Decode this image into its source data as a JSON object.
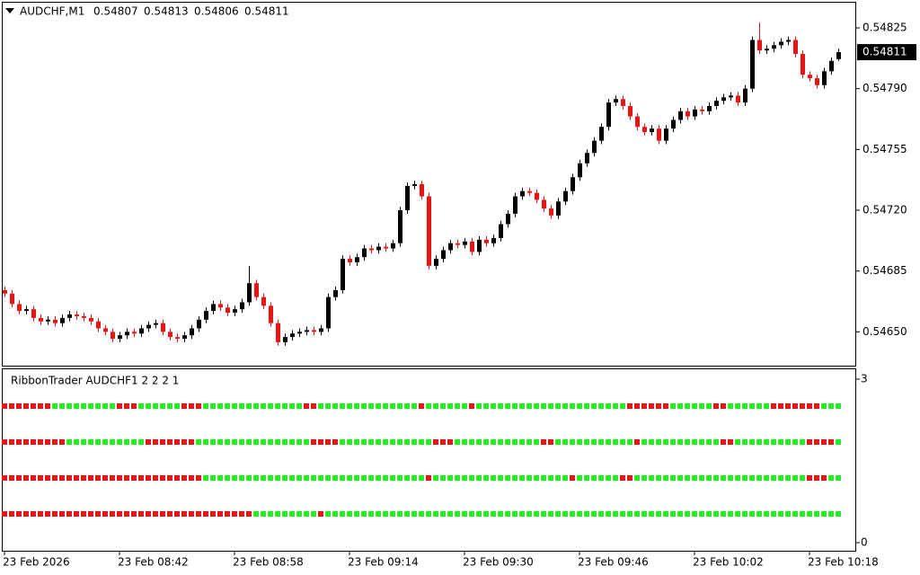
{
  "chart_data": {
    "type": "candlestick",
    "symbol": "AUDCHF,M1",
    "categories": [
      "23 Feb 2026",
      null,
      null,
      null,
      null,
      null,
      null,
      null,
      null,
      null,
      null,
      null,
      null,
      null,
      null,
      null,
      "23 Feb 08:42",
      null,
      null,
      null,
      null,
      null,
      null,
      null,
      null,
      null,
      null,
      null,
      null,
      null,
      null,
      null,
      "23 Feb 08:58",
      null,
      null,
      null,
      null,
      null,
      null,
      null,
      null,
      null,
      null,
      null,
      null,
      null,
      null,
      null,
      "23 Feb 09:14",
      null,
      null,
      null,
      null,
      null,
      null,
      null,
      null,
      null,
      null,
      null,
      null,
      null,
      null,
      null,
      "23 Feb 09:30",
      null,
      null,
      null,
      null,
      null,
      null,
      null,
      null,
      null,
      null,
      null,
      null,
      null,
      null,
      null,
      "23 Feb 09:46",
      null,
      null,
      null,
      null,
      null,
      null,
      null,
      null,
      null,
      null,
      null,
      null,
      null,
      null,
      null,
      "23 Feb 10:02",
      null,
      null,
      null,
      null,
      null,
      null,
      null,
      null,
      null,
      null,
      null,
      null,
      null,
      null,
      null,
      "23 Feb 10:18",
      null,
      null,
      null,
      null
    ],
    "open": [
      0.54674,
      0.54672,
      0.54666,
      0.54662,
      0.54663,
      0.54658,
      0.54656,
      0.54657,
      0.54655,
      0.54658,
      0.5466,
      0.54659,
      0.54658,
      0.54656,
      0.54652,
      0.5465,
      0.54646,
      0.54648,
      0.5465,
      0.54649,
      0.54652,
      0.54654,
      0.54655,
      0.5465,
      0.54647,
      0.54646,
      0.54648,
      0.54652,
      0.54657,
      0.54662,
      0.54666,
      0.54664,
      0.54661,
      0.54663,
      0.54667,
      0.54678,
      0.5467,
      0.54665,
      0.54655,
      0.54644,
      0.54647,
      0.54649,
      0.5465,
      0.54651,
      0.5465,
      0.54652,
      0.5467,
      0.54674,
      0.54692,
      0.5469,
      0.54693,
      0.54698,
      0.54697,
      0.54699,
      0.54698,
      0.54701,
      0.5472,
      0.54734,
      0.54735,
      0.54728,
      0.54688,
      0.54692,
      0.54697,
      0.54701,
      0.547,
      0.54702,
      0.54696,
      0.54703,
      0.54701,
      0.54704,
      0.54712,
      0.54718,
      0.54728,
      0.54731,
      0.5473,
      0.54726,
      0.54721,
      0.54717,
      0.54725,
      0.54731,
      0.54739,
      0.54747,
      0.54753,
      0.5476,
      0.54768,
      0.54782,
      0.54784,
      0.5478,
      0.54774,
      0.54768,
      0.54765,
      0.54767,
      0.5476,
      0.54767,
      0.54772,
      0.54777,
      0.54774,
      0.54778,
      0.54777,
      0.5478,
      0.54783,
      0.54785,
      0.54786,
      0.54782,
      0.5479,
      0.54818,
      0.54812,
      0.54813,
      0.54815,
      0.54817,
      0.54818,
      0.5481,
      0.54798,
      0.54796,
      0.54792,
      0.548,
      0.54807
    ],
    "high": [
      0.54676,
      0.54674,
      0.54668,
      0.54665,
      0.54665,
      0.5466,
      0.54659,
      0.54659,
      0.5466,
      0.54662,
      0.54662,
      0.54661,
      0.5466,
      0.54658,
      0.54654,
      0.54652,
      0.5465,
      0.54652,
      0.54652,
      0.54654,
      0.54656,
      0.54657,
      0.54657,
      0.54652,
      0.54649,
      0.5465,
      0.54654,
      0.54659,
      0.54664,
      0.54668,
      0.54668,
      0.54666,
      0.54665,
      0.54669,
      0.54688,
      0.5468,
      0.54672,
      0.54667,
      0.54657,
      0.54649,
      0.54651,
      0.54652,
      0.54653,
      0.54653,
      0.54654,
      0.54672,
      0.54676,
      0.54694,
      0.54694,
      0.54695,
      0.547,
      0.547,
      0.54701,
      0.54701,
      0.54703,
      0.54722,
      0.54736,
      0.54737,
      0.54737,
      0.5473,
      0.54694,
      0.54699,
      0.54703,
      0.54703,
      0.54704,
      0.54704,
      0.54705,
      0.54705,
      0.54706,
      0.54714,
      0.5472,
      0.5473,
      0.54733,
      0.54733,
      0.54732,
      0.54728,
      0.54723,
      0.54727,
      0.54733,
      0.54741,
      0.54749,
      0.54755,
      0.54762,
      0.5477,
      0.54784,
      0.54786,
      0.54786,
      0.54782,
      0.54776,
      0.5477,
      0.54769,
      0.54769,
      0.54769,
      0.54774,
      0.54779,
      0.54779,
      0.5478,
      0.5478,
      0.54782,
      0.54785,
      0.54787,
      0.54788,
      0.54788,
      0.54792,
      0.5482,
      0.54828,
      0.54815,
      0.54817,
      0.54819,
      0.5482,
      0.5482,
      0.54812,
      0.548,
      0.54798,
      0.54802,
      0.54808,
      0.54813
    ],
    "low": [
      0.5467,
      0.54664,
      0.5466,
      0.5466,
      0.54656,
      0.54654,
      0.54654,
      0.54653,
      0.54653,
      0.54656,
      0.54657,
      0.54656,
      0.54654,
      0.5465,
      0.54648,
      0.54644,
      0.54644,
      0.54646,
      0.54647,
      0.54647,
      0.5465,
      0.54652,
      0.54648,
      0.54645,
      0.54644,
      0.54644,
      0.54646,
      0.5465,
      0.54655,
      0.5466,
      0.54662,
      0.54659,
      0.54659,
      0.54661,
      0.54665,
      0.54668,
      0.54663,
      0.54653,
      0.54642,
      0.54642,
      0.54645,
      0.54647,
      0.54648,
      0.54648,
      0.54648,
      0.5465,
      0.54668,
      0.54672,
      0.54688,
      0.54688,
      0.54691,
      0.54695,
      0.54695,
      0.54696,
      0.54696,
      0.54699,
      0.54718,
      0.54732,
      0.54726,
      0.54686,
      0.54686,
      0.5469,
      0.54695,
      0.54698,
      0.54698,
      0.54694,
      0.54694,
      0.54699,
      0.54699,
      0.54702,
      0.5471,
      0.54716,
      0.54726,
      0.54728,
      0.54724,
      0.54719,
      0.54715,
      0.54715,
      0.54723,
      0.54729,
      0.54737,
      0.54745,
      0.54751,
      0.54758,
      0.54766,
      0.5478,
      0.54778,
      0.54772,
      0.54766,
      0.54763,
      0.54763,
      0.54758,
      0.54758,
      0.54765,
      0.5477,
      0.54772,
      0.54772,
      0.54775,
      0.54775,
      0.54778,
      0.54781,
      0.54783,
      0.5478,
      0.5478,
      0.54788,
      0.5481,
      0.5481,
      0.54811,
      0.54813,
      0.54815,
      0.54808,
      0.54796,
      0.54794,
      0.5479,
      0.5479,
      0.54798,
      0.54806
    ],
    "close": [
      0.54672,
      0.54666,
      0.54662,
      0.54663,
      0.54658,
      0.54656,
      0.54657,
      0.54655,
      0.54658,
      0.5466,
      0.54659,
      0.54658,
      0.54656,
      0.54652,
      0.5465,
      0.54646,
      0.54648,
      0.5465,
      0.54649,
      0.54652,
      0.54654,
      0.54655,
      0.5465,
      0.54647,
      0.54646,
      0.54648,
      0.54652,
      0.54657,
      0.54662,
      0.54666,
      0.54664,
      0.54661,
      0.54663,
      0.54667,
      0.54678,
      0.5467,
      0.54665,
      0.54655,
      0.54644,
      0.54647,
      0.54649,
      0.5465,
      0.54651,
      0.5465,
      0.54652,
      0.5467,
      0.54674,
      0.54692,
      0.5469,
      0.54693,
      0.54698,
      0.54697,
      0.54699,
      0.54698,
      0.54701,
      0.5472,
      0.54734,
      0.54735,
      0.54728,
      0.54688,
      0.54692,
      0.54697,
      0.54701,
      0.547,
      0.54702,
      0.54696,
      0.54703,
      0.54701,
      0.54704,
      0.54712,
      0.54718,
      0.54728,
      0.54731,
      0.5473,
      0.54726,
      0.54721,
      0.54717,
      0.54725,
      0.54731,
      0.54739,
      0.54747,
      0.54753,
      0.5476,
      0.54768,
      0.54782,
      0.54784,
      0.5478,
      0.54774,
      0.54768,
      0.54765,
      0.54767,
      0.5476,
      0.54767,
      0.54772,
      0.54777,
      0.54774,
      0.54778,
      0.54777,
      0.5478,
      0.54783,
      0.54785,
      0.54786,
      0.54782,
      0.5479,
      0.54818,
      0.54812,
      0.54813,
      0.54815,
      0.54817,
      0.54818,
      0.5481,
      0.54798,
      0.54796,
      0.54792,
      0.548,
      0.54806,
      0.54811
    ],
    "up_color": "#000000",
    "down_color": "#e81515",
    "flat_color": "#22bb22",
    "ylim": [
      0.5463,
      0.5484
    ],
    "yticks": [
      {
        "value": 0.5465,
        "label": "0.54650"
      },
      {
        "value": 0.54685,
        "label": "0.54685"
      },
      {
        "value": 0.5472,
        "label": "0.54720"
      },
      {
        "value": 0.54755,
        "label": "0.54755"
      },
      {
        "value": 0.5479,
        "label": "0.54790"
      },
      {
        "value": 0.54825,
        "label": "0.54825"
      }
    ],
    "ribbon": {
      "title": "RibbonTrader AUDCHF1 2 2 2 1",
      "ylim": [
        0,
        3
      ],
      "yticks": [
        0,
        3
      ],
      "state_colors": [
        "#ee1111",
        "#22ee22"
      ],
      "rows": [
        [
          0,
          0,
          0,
          0,
          0,
          0,
          0,
          1,
          1,
          1,
          1,
          1,
          1,
          1,
          1,
          1,
          0,
          0,
          0,
          1,
          1,
          1,
          1,
          1,
          1,
          0,
          0,
          0,
          1,
          1,
          1,
          1,
          1,
          1,
          1,
          1,
          1,
          1,
          1,
          1,
          1,
          1,
          0,
          0,
          1,
          1,
          1,
          1,
          1,
          1,
          1,
          1,
          1,
          1,
          1,
          1,
          1,
          1,
          0,
          1,
          1,
          1,
          1,
          1,
          1,
          0,
          1,
          1,
          1,
          1,
          1,
          1,
          1,
          1,
          1,
          1,
          1,
          1,
          1,
          1,
          1,
          1,
          1,
          1,
          1,
          1,
          1,
          0,
          0,
          0,
          0,
          0,
          0,
          1,
          1,
          1,
          1,
          1,
          1,
          0,
          0,
          1,
          1,
          1,
          1,
          1,
          1,
          0,
          0,
          0,
          0,
          0,
          0,
          0,
          1,
          1,
          1
        ],
        [
          0,
          0,
          0,
          0,
          0,
          0,
          0,
          0,
          0,
          1,
          1,
          1,
          1,
          1,
          1,
          1,
          1,
          1,
          1,
          1,
          0,
          0,
          0,
          0,
          0,
          0,
          0,
          1,
          1,
          1,
          1,
          1,
          1,
          1,
          1,
          1,
          1,
          1,
          1,
          1,
          1,
          1,
          1,
          0,
          0,
          0,
          0,
          1,
          1,
          1,
          1,
          1,
          1,
          1,
          1,
          1,
          1,
          1,
          1,
          1,
          0,
          0,
          0,
          1,
          1,
          1,
          1,
          1,
          1,
          1,
          1,
          1,
          1,
          1,
          1,
          0,
          0,
          1,
          1,
          1,
          1,
          1,
          1,
          1,
          1,
          1,
          1,
          1,
          0,
          1,
          1,
          1,
          1,
          1,
          1,
          1,
          1,
          1,
          1,
          1,
          0,
          0,
          1,
          1,
          1,
          1,
          1,
          1,
          1,
          1,
          1,
          1,
          0,
          0,
          0,
          0,
          1
        ],
        [
          0,
          0,
          0,
          0,
          0,
          0,
          0,
          0,
          0,
          0,
          0,
          0,
          0,
          0,
          0,
          0,
          0,
          0,
          0,
          0,
          0,
          0,
          0,
          0,
          0,
          0,
          0,
          0,
          1,
          1,
          1,
          1,
          1,
          1,
          1,
          1,
          1,
          1,
          1,
          1,
          1,
          1,
          1,
          1,
          1,
          1,
          1,
          1,
          1,
          1,
          1,
          1,
          1,
          1,
          1,
          1,
          1,
          1,
          1,
          0,
          1,
          1,
          1,
          1,
          1,
          1,
          1,
          1,
          1,
          1,
          1,
          1,
          1,
          1,
          1,
          1,
          1,
          1,
          1,
          0,
          1,
          1,
          1,
          1,
          1,
          1,
          0,
          0,
          1,
          1,
          1,
          1,
          1,
          1,
          1,
          1,
          1,
          1,
          1,
          1,
          1,
          1,
          1,
          1,
          1,
          1,
          1,
          1,
          1,
          1,
          1,
          1,
          0,
          0,
          0,
          1,
          1
        ],
        [
          0,
          0,
          0,
          0,
          0,
          0,
          0,
          0,
          0,
          0,
          0,
          0,
          0,
          0,
          0,
          0,
          0,
          0,
          0,
          0,
          0,
          0,
          0,
          0,
          0,
          0,
          0,
          0,
          0,
          0,
          0,
          0,
          0,
          0,
          0,
          1,
          1,
          1,
          1,
          1,
          1,
          1,
          1,
          1,
          0,
          1,
          1,
          1,
          1,
          1,
          1,
          1,
          1,
          1,
          1,
          1,
          1,
          1,
          1,
          1,
          1,
          1,
          1,
          1,
          1,
          1,
          1,
          1,
          1,
          1,
          1,
          1,
          1,
          1,
          1,
          1,
          1,
          1,
          1,
          1,
          1,
          1,
          1,
          1,
          1,
          1,
          1,
          1,
          1,
          1,
          1,
          1,
          1,
          1,
          1,
          1,
          1,
          1,
          1,
          1,
          1,
          1,
          1,
          1,
          1,
          1,
          1,
          1,
          1,
          1,
          1,
          1,
          1,
          1,
          1,
          1,
          1
        ]
      ]
    }
  }
}
